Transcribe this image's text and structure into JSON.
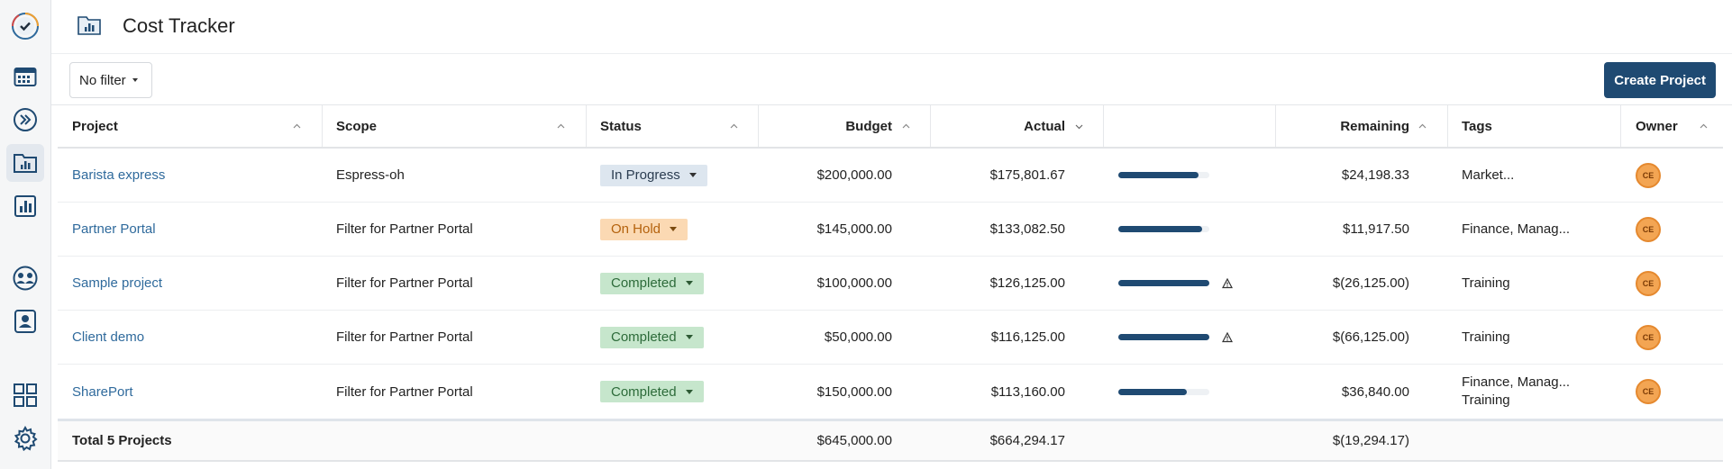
{
  "header": {
    "title": "Cost Tracker"
  },
  "toolbar": {
    "filter_label": "No filter",
    "create_label": "Create Project"
  },
  "columns": {
    "project": "Project",
    "scope": "Scope",
    "status": "Status",
    "budget": "Budget",
    "actual": "Actual",
    "remaining": "Remaining",
    "tags": "Tags",
    "owner": "Owner"
  },
  "rows": [
    {
      "project": "Barista express",
      "scope": "Espress-oh",
      "status": "In Progress",
      "budget": "$200,000.00",
      "actual": "$175,801.67",
      "spent_fraction": 0.88,
      "remaining": "$24,198.33",
      "tags": "Market...",
      "tags2": "",
      "owner": "CE"
    },
    {
      "project": "Partner Portal",
      "scope": "Filter for Partner Portal",
      "status": "On Hold",
      "budget": "$145,000.00",
      "actual": "$133,082.50",
      "spent_fraction": 0.92,
      "remaining": "$11,917.50",
      "tags": "Finance, Manag...",
      "tags2": "",
      "owner": "CE"
    },
    {
      "project": "Sample project",
      "scope": "Filter for Partner Portal",
      "status": "Completed",
      "budget": "$100,000.00",
      "actual": "$126,125.00",
      "spent_fraction": 1.0,
      "remaining": "$(26,125.00)",
      "tags": "Training",
      "tags2": "",
      "owner": "CE"
    },
    {
      "project": "Client demo",
      "scope": "Filter for Partner Portal",
      "status": "Completed",
      "budget": "$50,000.00",
      "actual": "$116,125.00",
      "spent_fraction": 1.0,
      "remaining": "$(66,125.00)",
      "tags": "Training",
      "tags2": "",
      "owner": "CE"
    },
    {
      "project": "SharePort",
      "scope": "Filter for Partner Portal",
      "status": "Completed",
      "budget": "$150,000.00",
      "actual": "$113,160.00",
      "spent_fraction": 0.75,
      "remaining": "$36,840.00",
      "tags": "Finance, Manag...",
      "tags2": "Training",
      "owner": "CE"
    }
  ],
  "total": {
    "label": "Total 5 Projects",
    "budget": "$645,000.00",
    "actual": "$664,294.17",
    "remaining": "$(19,294.17)"
  },
  "colors": {
    "accent": "#1f4a72",
    "link": "#2f6a9c",
    "in_progress_bg": "#dde6ef",
    "on_hold_bg": "#fbd9b3",
    "completed_bg": "#c6e6cc",
    "avatar": "#f3a553"
  },
  "icons": [
    "app-logo-icon",
    "calendar-icon",
    "fast-forward-icon",
    "folder-chart-icon",
    "bar-chart-icon",
    "globe-people-icon",
    "contact-card-icon",
    "grid-icon",
    "gear-icon",
    "warning-icon",
    "sort-up-icon",
    "sort-down-icon"
  ]
}
